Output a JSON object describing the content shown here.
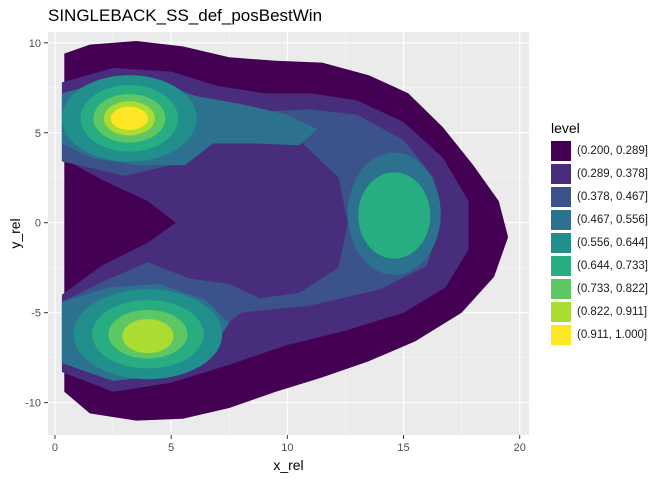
{
  "chart_data": {
    "type": "contour",
    "title": "SINGLEBACK_SS_def_posBestWin",
    "xlabel": "x_rel",
    "ylabel": "y_rel",
    "xlim": [
      -0.3,
      20.4
    ],
    "ylim": [
      -11.8,
      10.6
    ],
    "x_ticks": [
      0,
      5,
      10,
      15,
      20
    ],
    "y_ticks": [
      -10,
      -5,
      0,
      5,
      10
    ],
    "grid": true,
    "legend_title": "level",
    "legend_position": "right",
    "levels": [
      {
        "label": "(0.200, 0.289]",
        "color": "#440154"
      },
      {
        "label": "(0.289, 0.378]",
        "color": "#472D7B"
      },
      {
        "label": "(0.378, 0.467]",
        "color": "#3B528B"
      },
      {
        "label": "(0.467, 0.556]",
        "color": "#2C728E"
      },
      {
        "label": "(0.556, 0.644]",
        "color": "#21908C"
      },
      {
        "label": "(0.644, 0.733]",
        "color": "#27AD81"
      },
      {
        "label": "(0.733, 0.822]",
        "color": "#5DC863"
      },
      {
        "label": "(0.822, 0.911]",
        "color": "#AADC32"
      },
      {
        "label": "(0.911, 1.000]",
        "color": "#FDE725"
      }
    ],
    "density_peaks": [
      {
        "x": 3.2,
        "y": 5.8,
        "peak_level": "(0.911, 1.000]"
      },
      {
        "x": 4.0,
        "y": -6.3,
        "peak_level": "(0.822, 0.911]"
      },
      {
        "x": 14.8,
        "y": 0.4,
        "peak_level": "(0.644, 0.733]"
      }
    ]
  }
}
